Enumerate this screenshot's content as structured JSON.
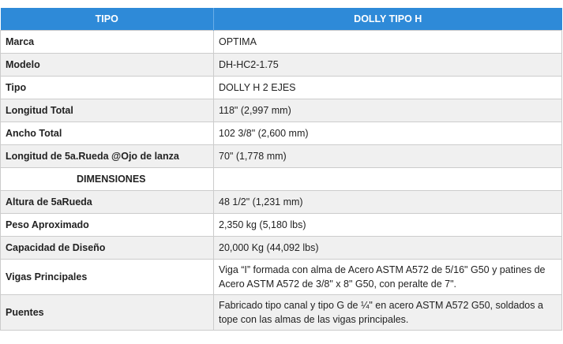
{
  "table": {
    "header": [
      "TIPO",
      "DOLLY TIPO H"
    ],
    "rows": [
      {
        "label": "Marca",
        "value": "OPTIMA"
      },
      {
        "label": "Modelo",
        "value": "DH-HC2-1.75"
      },
      {
        "label": "Tipo",
        "value": "DOLLY H 2 EJES"
      },
      {
        "label": "Longitud Total",
        "value": "118\" (2,997 mm)"
      },
      {
        "label": "Ancho Total",
        "value": "102 3/8\" (2,600 mm)"
      },
      {
        "label": "Longitud de 5a.Rueda @Ojo de lanza",
        "value": "70\" (1,778 mm)"
      },
      {
        "label": "DIMENSIONES",
        "value": ""
      },
      {
        "label": "Altura de 5aRueda",
        "value": "48 1/2\" (1,231 mm)"
      },
      {
        "label": "Peso Aproximado",
        "value": "2,350 kg (5,180 lbs)"
      },
      {
        "label": "Capacidad de Diseño",
        "value": "20,000 Kg (44,092 lbs)"
      },
      {
        "label": "Vigas Principales",
        "value": "Viga “I” formada con alma de Acero ASTM A572 de 5/16\" G50 y patines de Acero ASTM A572 de 3/8\" x 8\" G50, con peralte de 7\"."
      },
      {
        "label": "Puentes",
        "value": "Fabricado tipo canal y tipo G de ¼\" en acero ASTM A572 G50, soldados a tope con las almas de las vigas principales."
      }
    ]
  }
}
